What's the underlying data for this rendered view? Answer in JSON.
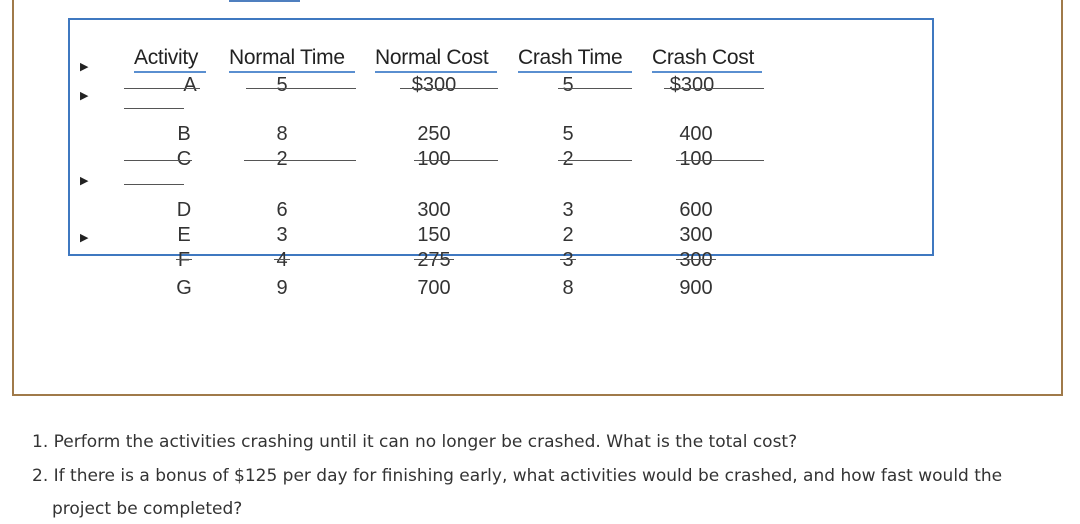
{
  "table": {
    "headers": [
      "Activity",
      "Normal Time",
      "Normal Cost",
      "Crash Time",
      "Crash Cost"
    ],
    "rows": [
      [
        "A",
        "5",
        "$300",
        "5",
        "$300"
      ],
      [
        "B",
        "8",
        "250",
        "5",
        "400"
      ],
      [
        "C",
        "2",
        "100",
        "2",
        "100"
      ],
      [
        "D",
        "6",
        "300",
        "3",
        "600"
      ],
      [
        "E",
        "3",
        "150",
        "2",
        "300"
      ],
      [
        "F",
        "4",
        "275",
        "3",
        "300"
      ],
      [
        "G",
        "9",
        "700",
        "8",
        "900"
      ]
    ]
  },
  "questions": {
    "q1": "1. Perform the activities crashing until it can no longer be crashed. What is the total cost?",
    "q2_line1": "2. If there is a bonus of $125 per day for finishing early, what activities would be crashed, and how fast would the",
    "q2_line2": "project be completed?"
  },
  "icons": {
    "row_marker": "play-arrow-icon"
  },
  "colors": {
    "frame_border": "#a07a4a",
    "selection_border": "#3f78c0",
    "header_underline": "#5a8fd0"
  }
}
